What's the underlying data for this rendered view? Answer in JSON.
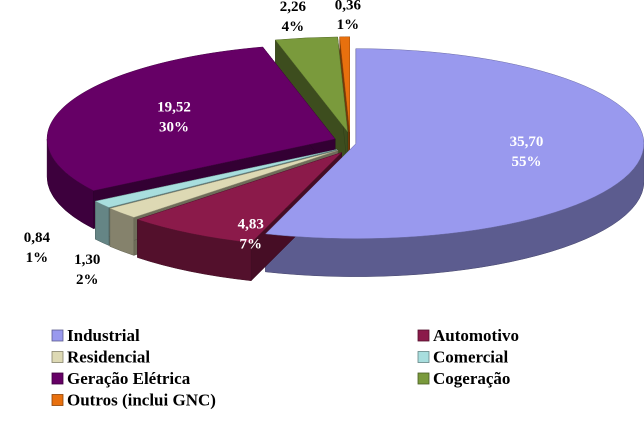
{
  "chart_data": {
    "type": "pie3d",
    "categories": [
      "Industrial",
      "Automotivo",
      "Residencial",
      "Comercial",
      "Geração Elétrica",
      "Cogeração",
      "Outros (inclui GNC)"
    ],
    "values": [
      35.7,
      4.83,
      1.3,
      0.84,
      19.52,
      2.26,
      0.36
    ],
    "value_labels": [
      "35,70",
      "4,83",
      "1,30",
      "0,84",
      "19,52",
      "2,26",
      "0,36"
    ],
    "percents": [
      55,
      7,
      2,
      1,
      30,
      4,
      1
    ],
    "percent_labels": [
      "55%",
      "7%",
      "2%",
      "1%",
      "30%",
      "4%",
      "1%"
    ],
    "colors": [
      "#9999ee",
      "#8b1a4a",
      "#ddd9b4",
      "#a8dede",
      "#660066",
      "#7a9a3c",
      "#e8700e"
    ]
  }
}
